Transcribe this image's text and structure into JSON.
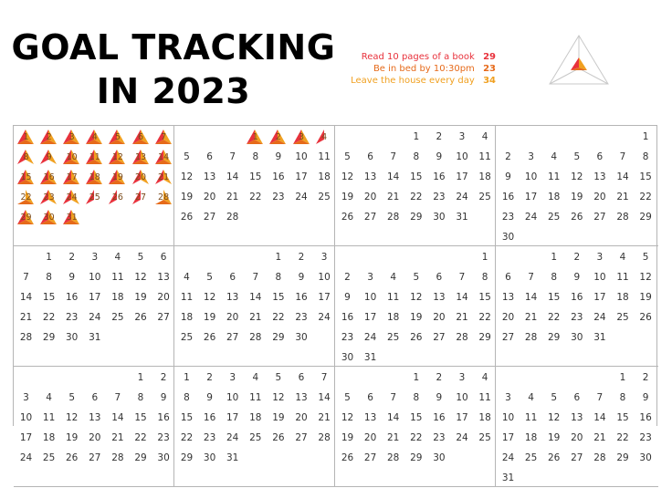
{
  "title_line1": "GOAL TRACKING",
  "title_line2": "IN 2023",
  "goals": [
    {
      "label": "Read 10 pages of a book",
      "count": "29",
      "color": "#e8323c"
    },
    {
      "label": "Be in bed by 10:30pm",
      "count": "23",
      "color": "#e66a1a"
    },
    {
      "label": "Leave the house every day",
      "count": "34",
      "color": "#f0a020"
    }
  ],
  "months": [
    {
      "offset": 0,
      "days": 31
    },
    {
      "offset": 3,
      "days": 28
    },
    {
      "offset": 3,
      "days": 31
    },
    {
      "offset": 6,
      "days": 30
    },
    {
      "offset": 1,
      "days": 31
    },
    {
      "offset": 4,
      "days": 30
    },
    {
      "offset": 6,
      "days": 31
    },
    {
      "offset": 2,
      "days": 31
    },
    {
      "offset": 5,
      "days": 30
    },
    {
      "offset": 0,
      "days": 31
    },
    {
      "offset": 3,
      "days": 30
    },
    {
      "offset": 5,
      "days": 31
    }
  ],
  "tracked": {
    "0": [
      [
        1,
        1,
        1
      ],
      [
        1,
        1,
        1
      ],
      [
        1,
        1,
        1
      ],
      [
        1,
        1,
        1
      ],
      [
        1,
        1,
        1
      ],
      [
        1,
        1,
        1
      ],
      [
        1,
        1,
        1
      ],
      [
        1,
        0,
        1
      ],
      [
        1,
        0,
        1
      ],
      [
        1,
        1,
        1
      ],
      [
        1,
        1,
        1
      ],
      [
        1,
        1,
        1
      ],
      [
        1,
        1,
        1
      ],
      [
        1,
        1,
        1
      ],
      [
        1,
        1,
        1
      ],
      [
        1,
        1,
        1
      ],
      [
        1,
        1,
        1
      ],
      [
        1,
        1,
        1
      ],
      [
        1,
        1,
        1
      ],
      [
        1,
        0,
        1
      ],
      [
        1,
        0,
        1
      ],
      [
        0,
        1,
        1
      ],
      [
        1,
        0,
        1
      ],
      [
        1,
        0,
        1
      ],
      [
        1,
        0,
        0
      ],
      [
        1,
        0,
        0
      ],
      [
        1,
        0,
        0
      ],
      [
        0,
        1,
        1
      ],
      [
        1,
        1,
        1
      ],
      [
        1,
        1,
        1
      ],
      [
        1,
        1,
        1
      ]
    ],
    "1": [
      [
        1,
        1,
        1
      ],
      [
        1,
        1,
        1
      ],
      [
        1,
        1,
        1
      ],
      [
        1,
        0,
        0
      ]
    ]
  }
}
